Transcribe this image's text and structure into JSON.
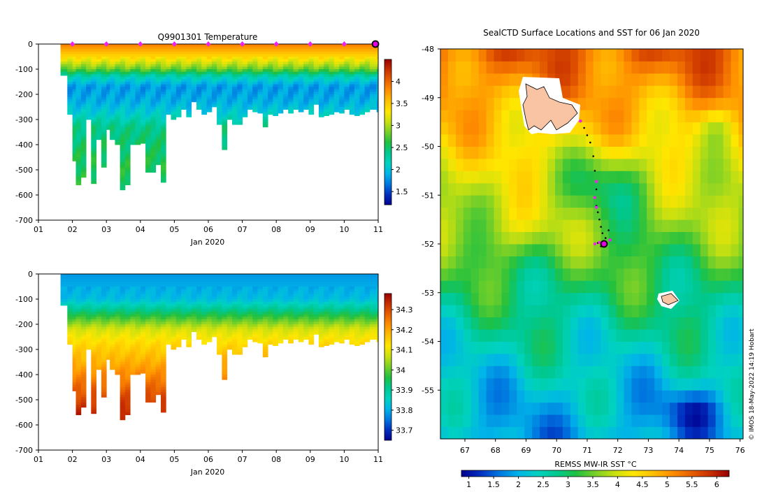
{
  "figure": {
    "credit": "© IMOS 18-May-2022 14:19 Hobart"
  },
  "colors": {
    "rainbow": [
      "#00008f",
      "#0030c0",
      "#0078e0",
      "#00b4e8",
      "#00d2c0",
      "#00c890",
      "#20c040",
      "#78d028",
      "#c8e010",
      "#ffe600",
      "#ffc000",
      "#ff9000",
      "#e86000",
      "#c83000",
      "#980000"
    ],
    "land": "#f9c4a4",
    "track_marker": "#ee22ee"
  },
  "chart_data": [
    {
      "id": "temperature",
      "type": "heatmap",
      "title": "Q9901301  Temperature",
      "xlabel": "Jan 2020",
      "ylabel": "",
      "x_ticks": [
        "01",
        "02",
        "03",
        "04",
        "05",
        "06",
        "07",
        "08",
        "09",
        "10",
        "11"
      ],
      "xlim": [
        1,
        11
      ],
      "y_ticks": [
        0,
        -100,
        -200,
        -300,
        -400,
        -500,
        -600,
        -700
      ],
      "ylim": [
        -700,
        0
      ],
      "colorbar": {
        "ticks": [
          "1.5",
          "2",
          "2.5",
          "3",
          "3.5",
          "4"
        ],
        "range": [
          1.2,
          4.5
        ]
      },
      "profile_days": [
        1.65,
        1.85,
        2.0,
        2.1,
        2.25,
        2.4,
        2.55,
        2.7,
        2.85,
        3.0,
        3.1,
        3.25,
        3.4,
        3.55,
        3.7,
        3.85,
        4.0,
        4.15,
        4.3,
        4.45,
        4.6,
        4.75,
        4.9,
        5.05,
        5.2,
        5.35,
        5.5,
        5.65,
        5.8,
        5.95,
        6.1,
        6.25,
        6.4,
        6.55,
        6.7,
        6.85,
        7.0,
        7.15,
        7.3,
        7.45,
        7.6,
        7.75,
        7.9,
        8.05,
        8.2,
        8.35,
        8.5,
        8.65,
        8.8,
        8.95,
        9.1,
        9.25,
        9.4,
        9.55,
        9.7,
        9.85,
        10.0,
        10.15,
        10.3,
        10.45,
        10.6,
        10.75,
        10.95
      ],
      "max_depths": [
        125,
        280,
        465,
        560,
        530,
        300,
        555,
        380,
        490,
        340,
        380,
        400,
        580,
        560,
        400,
        400,
        395,
        510,
        510,
        480,
        550,
        280,
        300,
        290,
        260,
        290,
        230,
        260,
        280,
        270,
        250,
        320,
        420,
        300,
        320,
        320,
        290,
        260,
        270,
        275,
        330,
        280,
        285,
        275,
        260,
        275,
        260,
        270,
        260,
        280,
        240,
        290,
        285,
        280,
        270,
        275,
        260,
        280,
        285,
        280,
        270,
        260,
        270
      ],
      "depth_values": [
        {
          "depth": 0,
          "value": 3.9
        },
        {
          "depth": 60,
          "value": 3.3
        },
        {
          "depth": 100,
          "value": 2.8
        },
        {
          "depth": 130,
          "value": 2.2
        },
        {
          "depth": 170,
          "value": 1.8
        },
        {
          "depth": 230,
          "value": 1.9
        },
        {
          "depth": 280,
          "value": 2.1
        },
        {
          "depth": 330,
          "value": 2.4
        },
        {
          "depth": 450,
          "value": 2.55
        },
        {
          "depth": 600,
          "value": 2.6
        }
      ],
      "surface_markers_days": [
        2,
        3,
        4,
        5,
        6,
        7,
        8,
        9,
        10
      ],
      "current_marker_day": 11
    },
    {
      "id": "salinity",
      "type": "heatmap",
      "title": "",
      "xlabel": "Jan 2020",
      "ylabel": "",
      "x_ticks": [
        "01",
        "02",
        "03",
        "04",
        "05",
        "06",
        "07",
        "08",
        "09",
        "10",
        "11"
      ],
      "xlim": [
        1,
        11
      ],
      "y_ticks": [
        0,
        -100,
        -200,
        -300,
        -400,
        -500,
        -600,
        -700
      ],
      "ylim": [
        -700,
        0
      ],
      "colorbar": {
        "ticks": [
          "33.7",
          "33.8",
          "33.9",
          "34",
          "34.1",
          "34.2",
          "34.3"
        ],
        "range": [
          33.65,
          34.38
        ]
      },
      "depth_values": [
        {
          "depth": 0,
          "value": 33.78
        },
        {
          "depth": 100,
          "value": 33.82
        },
        {
          "depth": 160,
          "value": 33.95
        },
        {
          "depth": 220,
          "value": 34.08
        },
        {
          "depth": 280,
          "value": 34.14
        },
        {
          "depth": 350,
          "value": 34.19
        },
        {
          "depth": 450,
          "value": 34.27
        },
        {
          "depth": 550,
          "value": 34.34
        },
        {
          "depth": 600,
          "value": 34.36
        }
      ]
    },
    {
      "id": "sst_map",
      "type": "heatmap",
      "title": "SealCTD Surface Locations and SST for 06 Jan 2020",
      "xlabel": "",
      "ylabel": "",
      "x_ticks": [
        "67",
        "68",
        "69",
        "70",
        "71",
        "72",
        "73",
        "74",
        "75",
        "76"
      ],
      "xlim": [
        66.2,
        76.1
      ],
      "y_ticks": [
        "-48",
        "-49",
        "-50",
        "-51",
        "-52",
        "-53",
        "-54",
        "-55"
      ],
      "ylim": [
        -56,
        -48
      ],
      "colorbar": {
        "label": "REMSS MW-IR SST °C",
        "ticks": [
          "1",
          "1.5",
          "2",
          "2.5",
          "3",
          "3.5",
          "4",
          "4.5",
          "5",
          "5.5",
          "6"
        ],
        "range": [
          0.85,
          6.25
        ]
      },
      "track": {
        "lon": [
          70.8,
          70.9,
          71.0,
          71.1,
          71.2,
          71.25,
          71.3,
          71.3,
          71.25,
          71.3,
          71.35,
          71.4,
          71.45,
          71.5,
          71.6,
          71.7,
          71.75,
          71.6,
          71.45,
          71.35,
          71.25
        ],
        "lat": [
          -49.48,
          -49.62,
          -49.77,
          -49.92,
          -50.2,
          -50.5,
          -50.72,
          -50.88,
          -51.05,
          -51.22,
          -51.35,
          -51.5,
          -51.65,
          -51.78,
          -51.88,
          -51.72,
          -51.92,
          -52.02,
          -52.05,
          -51.98,
          -52.0
        ]
      },
      "surface_markers": [
        {
          "lon": 70.78,
          "lat": -49.48
        },
        {
          "lon": 71.3,
          "lat": -50.72
        },
        {
          "lon": 71.25,
          "lat": -51.05
        },
        {
          "lon": 71.3,
          "lat": -51.25
        },
        {
          "lon": 71.75,
          "lat": -51.92
        },
        {
          "lon": 71.4,
          "lat": -51.97
        },
        {
          "lon": 71.25,
          "lat": -52.0
        }
      ],
      "current_position": {
        "lon": 71.55,
        "lat": -52.0
      }
    }
  ]
}
